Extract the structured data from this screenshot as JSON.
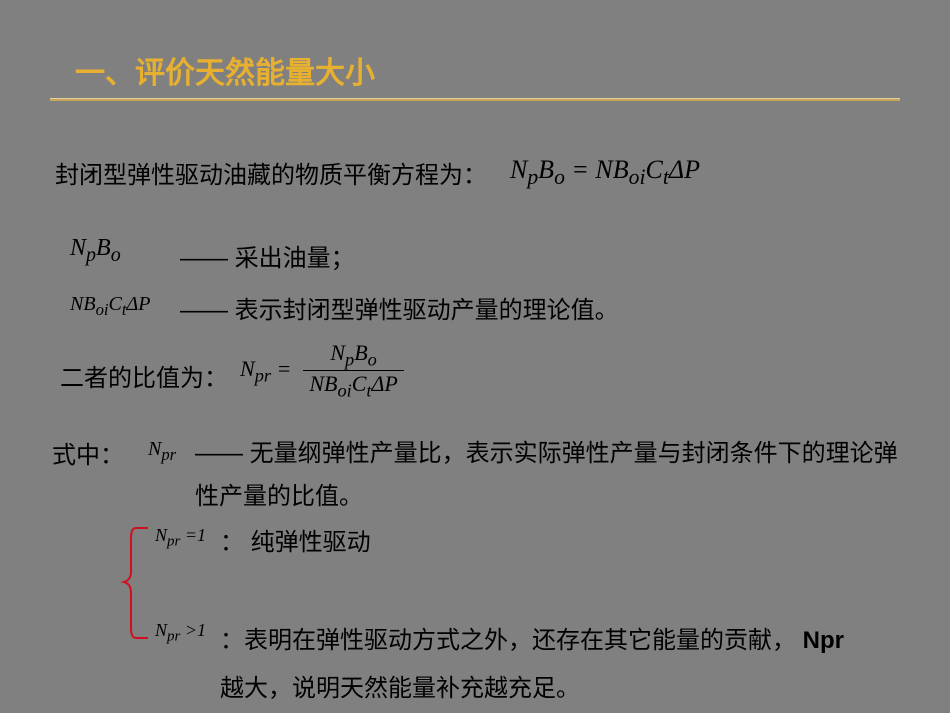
{
  "title": "一、评价天然能量大小",
  "intro": "封闭型弹性驱动油藏的物质平衡方程为：",
  "eq_main_html": "N<sub>p</sub>B<sub>o</sub> = NB<sub>oi</sub>C<sub>t</sub>ΔP",
  "line2_eq_html": "N<sub>p</sub>B<sub>o</sub>",
  "line2_text": "—— 采出油量；",
  "line3_eq_html": "NB<sub>oi</sub>C<sub>t</sub>ΔP",
  "line3_text": "—— 表示封闭型弹性驱动产量的理论值。",
  "line4_text": "二者的比值为：",
  "frac_left_html": "N<sub>pr</sub> =",
  "frac_num_html": "N<sub>p</sub>B<sub>o</sub>",
  "frac_den_html": "NB<sub>oi</sub>C<sub>t</sub>ΔP",
  "line5_label": "式中：",
  "line5_eq_html": "N<sub>pr</sub>",
  "line5_text": "—— 无量纲弹性产量比，表示实际弹性产量与封闭条件下的理论弹性产量的比值。",
  "case1_eq_html": "N<sub>pr</sub> =1",
  "case1_text": "： 纯弹性驱动",
  "case2_eq_html": "N<sub>pr</sub> >1",
  "case2_text_pre": "：表明在弹性驱动方式之外，还存在其它能量的贡献， ",
  "case2_npr": "Npr",
  "case2_text_post": "越大，说明天然能量补充越充足。",
  "colors": {
    "background": "#808080",
    "title": "#e8b030",
    "ruler": "#c8a858",
    "text": "#000000",
    "bracket": "#d01020"
  },
  "bracket": {
    "stroke": "#d01020",
    "stroke_width": 2,
    "height": 120,
    "width": 30
  }
}
